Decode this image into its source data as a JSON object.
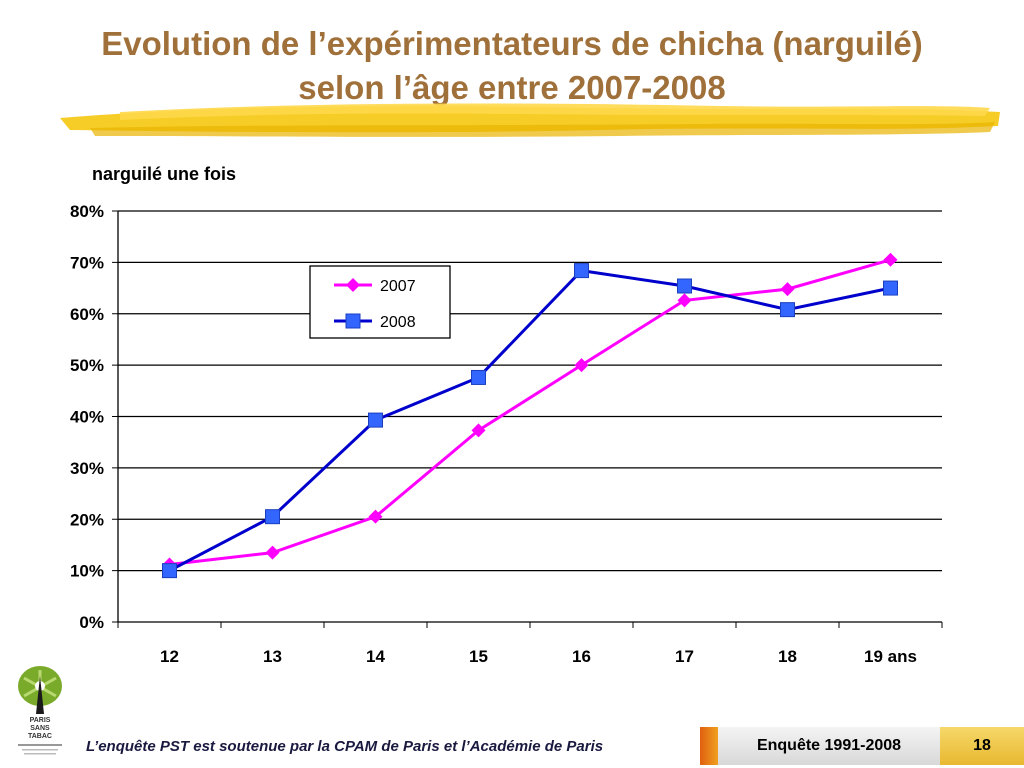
{
  "slide": {
    "title_line1": "Evolution de l’expérimentateurs de chicha (narguilé)",
    "title_line2": "selon l’âge entre 2007-2008",
    "footer_text": "L’enquête PST est soutenue par la CPAM de Paris et l’Académie de Paris",
    "footer_survey": "Enquête 1991-2008",
    "page_number": "18",
    "logo_text": [
      "PARIS",
      "SANS",
      "TABAC"
    ],
    "colors": {
      "title": "#a0703a",
      "brush": "#f5c400"
    }
  },
  "chart_data": {
    "type": "line",
    "title": "narguilé une fois",
    "categories": [
      "12",
      "13",
      "14",
      "15",
      "16",
      "17",
      "18",
      "19 ans"
    ],
    "yticks": [
      "0%",
      "10%",
      "20%",
      "30%",
      "40%",
      "50%",
      "60%",
      "70%",
      "80%"
    ],
    "ylim": [
      0,
      80
    ],
    "grid": true,
    "legend_position": "top-center",
    "series": [
      {
        "name": "2007",
        "color": "#ff00ff",
        "marker": "diamond",
        "values": [
          11.2,
          13.5,
          20.5,
          37.3,
          50.0,
          62.6,
          64.8,
          70.5
        ]
      },
      {
        "name": "2008",
        "color": "#0000cc",
        "marker_color": "#3366ff",
        "marker": "square",
        "values": [
          10.0,
          20.5,
          39.3,
          47.6,
          68.4,
          65.4,
          60.8,
          65.0
        ]
      }
    ]
  }
}
